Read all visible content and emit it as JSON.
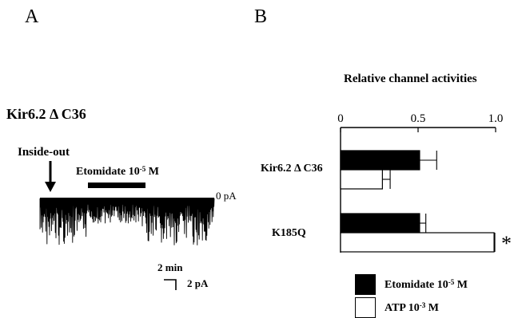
{
  "panel_a": {
    "label": "A",
    "construct_label": "Kir6.2 Δ C36",
    "arrow_label": "Inside-out",
    "drug_bar": {
      "label_pre": "Etomidate 10",
      "label_exp": "-5",
      "label_post": " M"
    },
    "baseline_label": "0 pA",
    "scale_bar": {
      "time_label": "2 min",
      "current_label": "2 pA"
    }
  },
  "panel_b": {
    "label": "B"
  },
  "colors": {
    "etomidate_fill": "#000000",
    "atp_fill": "#ffffff",
    "stroke": "#000000"
  },
  "chart_data": {
    "type": "bar",
    "orientation": "horizontal",
    "title": "Relative channel activities",
    "categories": [
      "Kir6.2 Δ C36",
      "K185Q"
    ],
    "x_ticks": [
      "0",
      "0.5",
      "1.0"
    ],
    "xlim": [
      0,
      1.0
    ],
    "series": [
      {
        "name_pre": "Etomidate 10",
        "name_exp": "-5",
        "name_post": " M",
        "fill": "#000000",
        "values": [
          0.51,
          0.51
        ],
        "errors": [
          0.11,
          0.04
        ]
      },
      {
        "name_pre": "ATP 10",
        "name_exp": "-3",
        "name_post": " M",
        "fill": "#ffffff",
        "values": [
          0.27,
          0.99
        ],
        "errors": [
          0.05,
          0.005
        ]
      }
    ],
    "annotations": [
      {
        "category": "K185Q",
        "series": 1,
        "text": "*"
      }
    ],
    "legend_position": "bottom"
  }
}
